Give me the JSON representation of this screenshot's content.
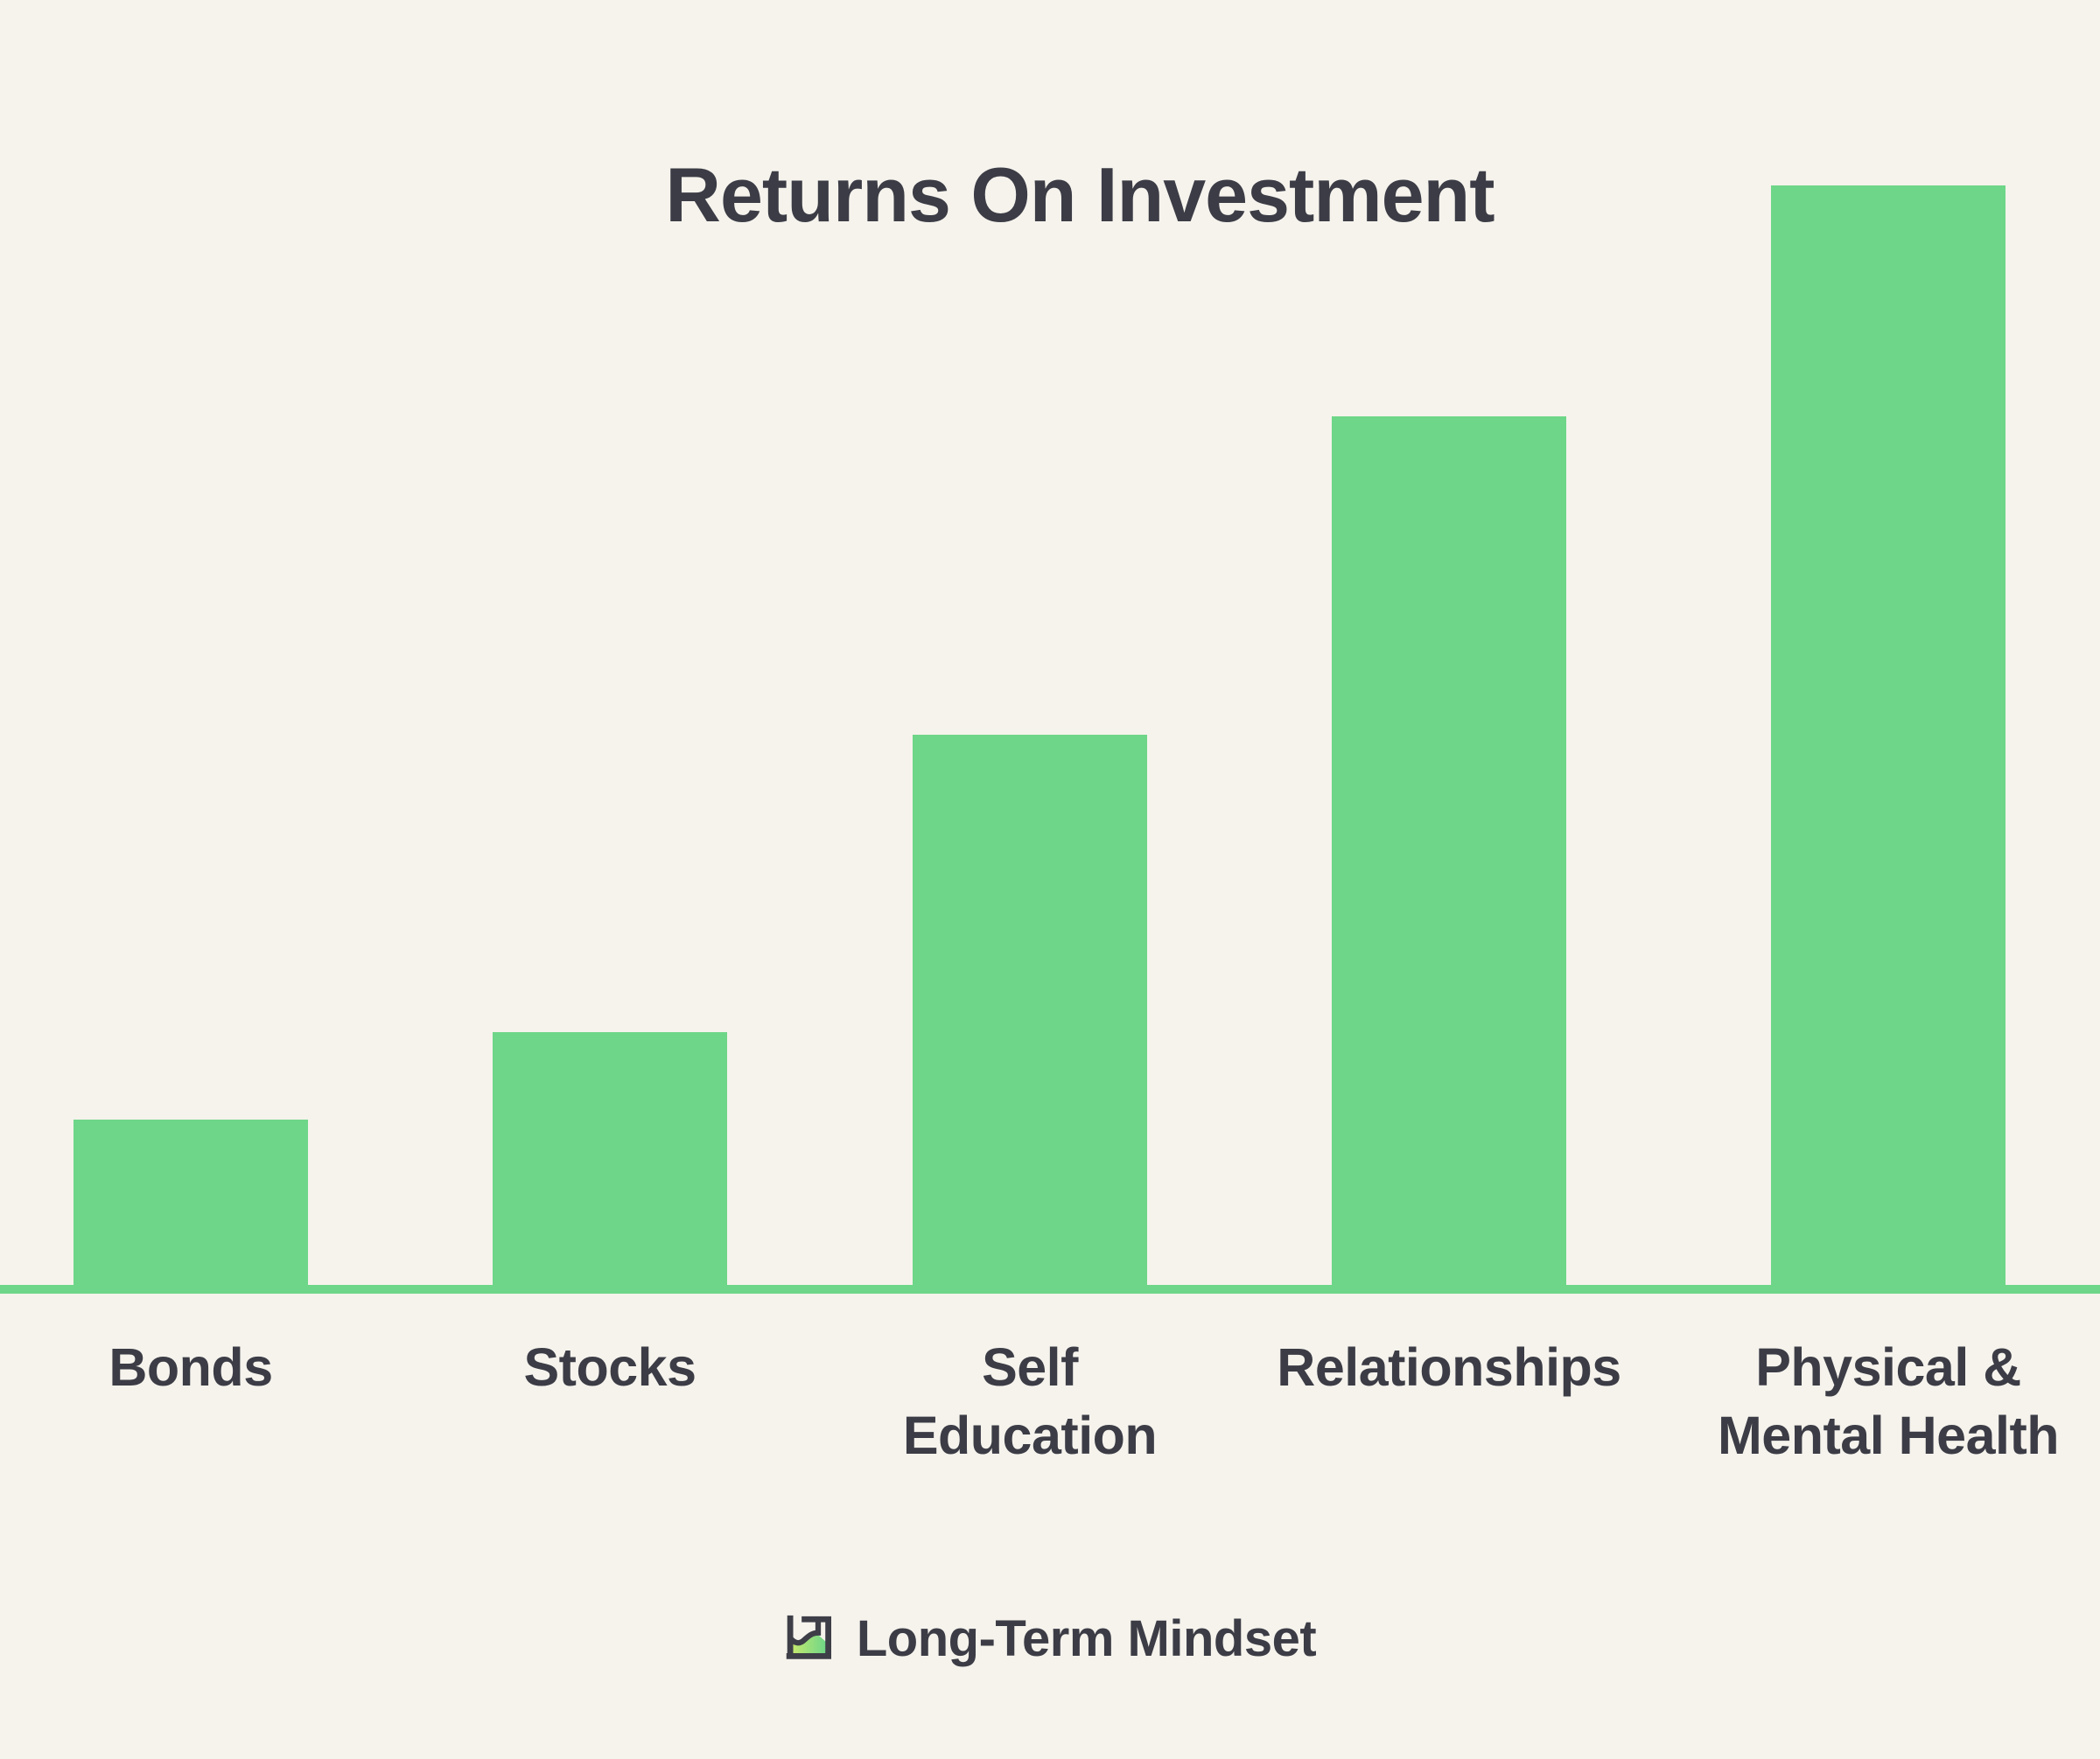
{
  "page": {
    "background_color": "#F5F3EC",
    "text_color": "#3C3C46",
    "accent_green": "#6ED688"
  },
  "chart_data": {
    "type": "bar",
    "title": "Returns On Investment",
    "categories": [
      "Bonds",
      "Stocks",
      "Self Education",
      "Relationships",
      "Physical & Mental Health"
    ],
    "category_lines": [
      [
        "Bonds"
      ],
      [
        "Stocks"
      ],
      [
        "Self",
        "Education"
      ],
      [
        "Relationships"
      ],
      [
        "Physical &",
        "Mental Health"
      ]
    ],
    "values": [
      15,
      23,
      50,
      79,
      100
    ],
    "value_unit": "relative return, % of tallest bar (no numeric axis shown)",
    "ylim": [
      0,
      100
    ],
    "xlabel": "",
    "ylabel": "",
    "bar_color": "#6ED688",
    "baseline_color": "#6ED688",
    "grid": false,
    "legend": false,
    "orientation": "vertical"
  },
  "footer": {
    "brand_name": "Long-Term Mindset"
  },
  "icons": {
    "logo": "line-chart-logo-icon",
    "logo_dark": "#3E3E48",
    "logo_lime": "#C9EA6E",
    "logo_green": "#6FD687"
  }
}
